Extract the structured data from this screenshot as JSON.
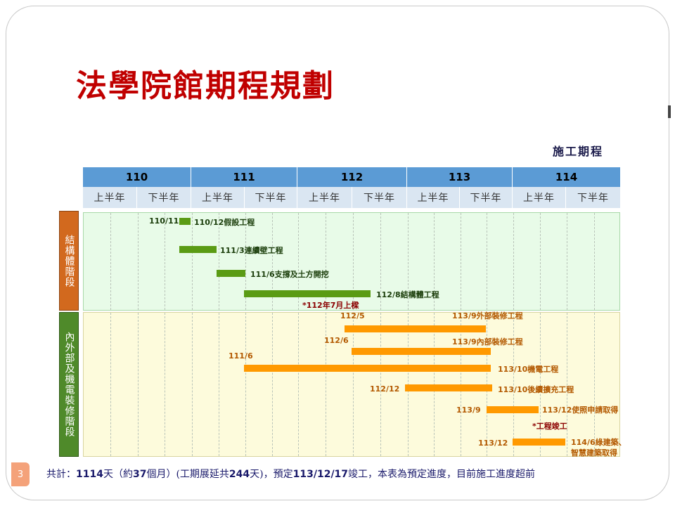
{
  "title": "法學院館期程規劃",
  "subtitle": "施工期程",
  "years": [
    "110",
    "111",
    "112",
    "113",
    "114"
  ],
  "half_labels": [
    "上半年",
    "下半年"
  ],
  "phases": [
    {
      "label": "結構體階段"
    },
    {
      "label": "內外部及機電裝修階段"
    }
  ],
  "tasks": [
    {
      "start_label": "110/11",
      "end_label": "110/12假設工程"
    },
    {
      "start_label": "",
      "end_label": "111/3連續壁工程"
    },
    {
      "start_label": "",
      "end_label": "111/6支撐及土方開挖"
    },
    {
      "start_label": "",
      "end_label": "112/8結構體工程"
    },
    {
      "start_label": "112/5",
      "end_label": "113/9外部裝修工程"
    },
    {
      "start_label": "112/6",
      "end_label": "113/9內部裝修工程"
    },
    {
      "start_label": "111/6",
      "end_label": "113/10機電工程"
    },
    {
      "start_label": "112/12",
      "end_label": "113/10後續擴充工程"
    },
    {
      "start_label": "113/9",
      "end_label": "113/12使照申請取得"
    },
    {
      "start_label": "113/12",
      "end_label": "114/6綠建築、智慧建築取得"
    }
  ],
  "milestones": [
    {
      "label": "*112年7月上樑"
    },
    {
      "label": "*工程竣工"
    }
  ],
  "footer": {
    "prefix": "共計：",
    "days": "1114",
    "middle1": "天（約",
    "months": "37",
    "middle2": "個月）(工期展延共",
    "extension": "244",
    "middle3": "天)，預定",
    "finish": "113/12/17",
    "suffix": "竣工，本表為預定進度，目前施工進度超前"
  },
  "page_number": "3",
  "colors": {
    "title": "#c00000",
    "year_header": "#5b9bd5",
    "half_header": "#dae6f2",
    "green_bar": "#5a9b14",
    "orange_bar": "#ff9900",
    "phase1": "#d2691e",
    "phase2": "#4f8a2a"
  }
}
